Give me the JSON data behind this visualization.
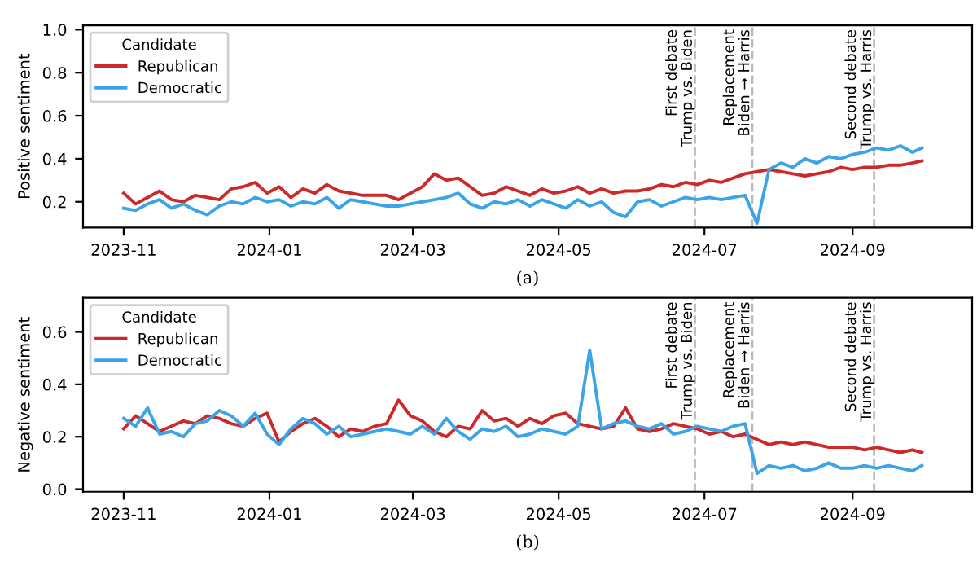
{
  "chart_data": [
    {
      "type": "line",
      "ylabel": "Positive sentiment",
      "legend_title": "Candidate",
      "legend": "top left",
      "grid": false,
      "annotations": [
        "(a)"
      ],
      "x": [
        "2023-11-01",
        "2023-11-06",
        "2023-11-11",
        "2023-11-16",
        "2023-11-21",
        "2023-11-26",
        "2023-12-01",
        "2023-12-06",
        "2023-12-11",
        "2023-12-16",
        "2023-12-21",
        "2023-12-26",
        "2023-12-31",
        "2024-01-05",
        "2024-01-10",
        "2024-01-15",
        "2024-01-20",
        "2024-01-25",
        "2024-01-30",
        "2024-02-04",
        "2024-02-09",
        "2024-02-14",
        "2024-02-19",
        "2024-02-24",
        "2024-02-29",
        "2024-03-05",
        "2024-03-10",
        "2024-03-15",
        "2024-03-20",
        "2024-03-25",
        "2024-03-30",
        "2024-04-04",
        "2024-04-09",
        "2024-04-14",
        "2024-04-19",
        "2024-04-24",
        "2024-04-29",
        "2024-05-04",
        "2024-05-09",
        "2024-05-14",
        "2024-05-19",
        "2024-05-24",
        "2024-05-29",
        "2024-06-03",
        "2024-06-08",
        "2024-06-13",
        "2024-06-18",
        "2024-06-23",
        "2024-06-28",
        "2024-07-03",
        "2024-07-08",
        "2024-07-13",
        "2024-07-18",
        "2024-07-23",
        "2024-07-28",
        "2024-08-02",
        "2024-08-07",
        "2024-08-12",
        "2024-08-17",
        "2024-08-22",
        "2024-08-27",
        "2024-09-01",
        "2024-09-06",
        "2024-09-11",
        "2024-09-16",
        "2024-09-21",
        "2024-09-26",
        "2024-09-30"
      ],
      "xlim": [
        "2023-10-15",
        "2024-10-21"
      ],
      "xticks": [
        {
          "value": "2023-11-01",
          "label": "2023-11"
        },
        {
          "value": "2024-01-01",
          "label": "2024-01"
        },
        {
          "value": "2024-03-01",
          "label": "2024-03"
        },
        {
          "value": "2024-05-01",
          "label": "2024-05"
        },
        {
          "value": "2024-07-01",
          "label": "2024-07"
        },
        {
          "value": "2024-09-01",
          "label": "2024-09"
        }
      ],
      "ylim": [
        0.08,
        1.02
      ],
      "yticks": [
        0.2,
        0.4,
        0.6,
        0.8,
        {
          "value": 1,
          "label": "1.0"
        }
      ],
      "ref_lines": [
        {
          "axis": "x",
          "value": "2024-06-27",
          "label": "First debate\nTrump vs. Biden",
          "color": "#bbbbbb",
          "line_style": "dashed"
        },
        {
          "axis": "x",
          "value": "2024-07-21",
          "label": "Replacement\nBiden → Harris",
          "color": "#bbbbbb",
          "line_style": "dashed"
        },
        {
          "axis": "x",
          "value": "2024-09-10",
          "label": "Second debate\nTrump vs. Harris",
          "color": "#bbbbbb",
          "line_style": "dashed"
        }
      ],
      "series": [
        {
          "name": "Republican",
          "color": "#cc2a2a",
          "values": [
            0.24,
            0.19,
            0.22,
            0.25,
            0.21,
            0.2,
            0.23,
            0.22,
            0.21,
            0.26,
            0.27,
            0.29,
            0.24,
            0.27,
            0.22,
            0.26,
            0.24,
            0.28,
            0.25,
            0.24,
            0.23,
            0.23,
            0.23,
            0.21,
            0.24,
            0.27,
            0.33,
            0.3,
            0.31,
            0.27,
            0.23,
            0.24,
            0.27,
            0.25,
            0.23,
            0.26,
            0.24,
            0.25,
            0.27,
            0.24,
            0.26,
            0.24,
            0.25,
            0.25,
            0.26,
            0.28,
            0.27,
            0.29,
            0.28,
            0.3,
            0.29,
            0.31,
            0.33,
            0.34,
            0.35,
            0.34,
            0.33,
            0.32,
            0.33,
            0.34,
            0.36,
            0.35,
            0.36,
            0.36,
            0.37,
            0.37,
            0.38,
            0.39
          ]
        },
        {
          "name": "Democratic",
          "color": "#3ba4e8",
          "values": [
            0.17,
            0.16,
            0.19,
            0.21,
            0.17,
            0.19,
            0.16,
            0.14,
            0.18,
            0.2,
            0.19,
            0.22,
            0.2,
            0.21,
            0.18,
            0.2,
            0.19,
            0.22,
            0.17,
            0.21,
            0.2,
            0.19,
            0.18,
            0.18,
            0.19,
            0.2,
            0.21,
            0.22,
            0.24,
            0.19,
            0.17,
            0.2,
            0.19,
            0.21,
            0.18,
            0.21,
            0.19,
            0.17,
            0.21,
            0.18,
            0.2,
            0.15,
            0.13,
            0.2,
            0.21,
            0.18,
            0.2,
            0.22,
            0.21,
            0.22,
            0.21,
            0.22,
            0.23,
            0.1,
            0.35,
            0.38,
            0.36,
            0.4,
            0.38,
            0.41,
            0.4,
            0.42,
            0.43,
            0.45,
            0.44,
            0.46,
            0.43,
            0.45
          ]
        }
      ]
    },
    {
      "type": "line",
      "ylabel": "Negative sentiment",
      "legend_title": "Candidate",
      "legend": "top left",
      "grid": false,
      "annotations": [
        "(b)"
      ],
      "x": [
        "2023-11-01",
        "2023-11-06",
        "2023-11-11",
        "2023-11-16",
        "2023-11-21",
        "2023-11-26",
        "2023-12-01",
        "2023-12-06",
        "2023-12-11",
        "2023-12-16",
        "2023-12-21",
        "2023-12-26",
        "2023-12-31",
        "2024-01-05",
        "2024-01-10",
        "2024-01-15",
        "2024-01-20",
        "2024-01-25",
        "2024-01-30",
        "2024-02-04",
        "2024-02-09",
        "2024-02-14",
        "2024-02-19",
        "2024-02-24",
        "2024-02-29",
        "2024-03-05",
        "2024-03-10",
        "2024-03-15",
        "2024-03-20",
        "2024-03-25",
        "2024-03-30",
        "2024-04-04",
        "2024-04-09",
        "2024-04-14",
        "2024-04-19",
        "2024-04-24",
        "2024-04-29",
        "2024-05-04",
        "2024-05-09",
        "2024-05-14",
        "2024-05-19",
        "2024-05-24",
        "2024-05-29",
        "2024-06-03",
        "2024-06-08",
        "2024-06-13",
        "2024-06-18",
        "2024-06-23",
        "2024-06-28",
        "2024-07-03",
        "2024-07-08",
        "2024-07-13",
        "2024-07-18",
        "2024-07-23",
        "2024-07-28",
        "2024-08-02",
        "2024-08-07",
        "2024-08-12",
        "2024-08-17",
        "2024-08-22",
        "2024-08-27",
        "2024-09-01",
        "2024-09-06",
        "2024-09-11",
        "2024-09-16",
        "2024-09-21",
        "2024-09-26",
        "2024-09-30"
      ],
      "xlim": [
        "2023-10-15",
        "2024-10-21"
      ],
      "xticks": [
        {
          "value": "2023-11-01",
          "label": "2023-11"
        },
        {
          "value": "2024-01-01",
          "label": "2024-01"
        },
        {
          "value": "2024-03-01",
          "label": "2024-03"
        },
        {
          "value": "2024-05-01",
          "label": "2024-05"
        },
        {
          "value": "2024-07-01",
          "label": "2024-07"
        },
        {
          "value": "2024-09-01",
          "label": "2024-09"
        }
      ],
      "ylim": [
        -0.01,
        0.73
      ],
      "yticks": [
        {
          "value": 0,
          "label": "0.0"
        },
        0.2,
        0.4,
        0.6
      ],
      "ref_lines": [
        {
          "axis": "x",
          "value": "2024-06-27",
          "label": "First debate\nTrump vs. Biden",
          "color": "#bbbbbb",
          "line_style": "dashed"
        },
        {
          "axis": "x",
          "value": "2024-07-21",
          "label": "Replacement\nBiden → Harris",
          "color": "#bbbbbb",
          "line_style": "dashed"
        },
        {
          "axis": "x",
          "value": "2024-09-10",
          "label": "Second debate\nTrump vs. Harris",
          "color": "#bbbbbb",
          "line_style": "dashed"
        }
      ],
      "series": [
        {
          "name": "Republican",
          "color": "#cc2a2a",
          "values": [
            0.23,
            0.28,
            0.25,
            0.22,
            0.24,
            0.26,
            0.25,
            0.28,
            0.27,
            0.25,
            0.24,
            0.27,
            0.29,
            0.18,
            0.22,
            0.25,
            0.27,
            0.24,
            0.2,
            0.23,
            0.22,
            0.24,
            0.25,
            0.34,
            0.28,
            0.26,
            0.22,
            0.2,
            0.24,
            0.23,
            0.3,
            0.26,
            0.27,
            0.24,
            0.27,
            0.25,
            0.28,
            0.29,
            0.25,
            0.24,
            0.23,
            0.24,
            0.31,
            0.23,
            0.22,
            0.23,
            0.25,
            0.24,
            0.23,
            0.21,
            0.22,
            0.2,
            0.21,
            0.19,
            0.17,
            0.18,
            0.17,
            0.18,
            0.17,
            0.16,
            0.16,
            0.16,
            0.15,
            0.16,
            0.15,
            0.14,
            0.15,
            0.14
          ]
        },
        {
          "name": "Democratic",
          "color": "#3ba4e8",
          "values": [
            0.27,
            0.24,
            0.31,
            0.21,
            0.22,
            0.2,
            0.25,
            0.26,
            0.3,
            0.28,
            0.24,
            0.29,
            0.21,
            0.17,
            0.23,
            0.27,
            0.25,
            0.21,
            0.24,
            0.2,
            0.21,
            0.22,
            0.23,
            0.22,
            0.21,
            0.24,
            0.21,
            0.27,
            0.22,
            0.19,
            0.23,
            0.22,
            0.24,
            0.2,
            0.21,
            0.23,
            0.22,
            0.21,
            0.24,
            0.53,
            0.23,
            0.25,
            0.26,
            0.24,
            0.23,
            0.25,
            0.21,
            0.22,
            0.24,
            0.23,
            0.22,
            0.24,
            0.25,
            0.06,
            0.09,
            0.08,
            0.09,
            0.07,
            0.08,
            0.1,
            0.08,
            0.08,
            0.09,
            0.08,
            0.09,
            0.08,
            0.07,
            0.09
          ]
        }
      ]
    }
  ]
}
